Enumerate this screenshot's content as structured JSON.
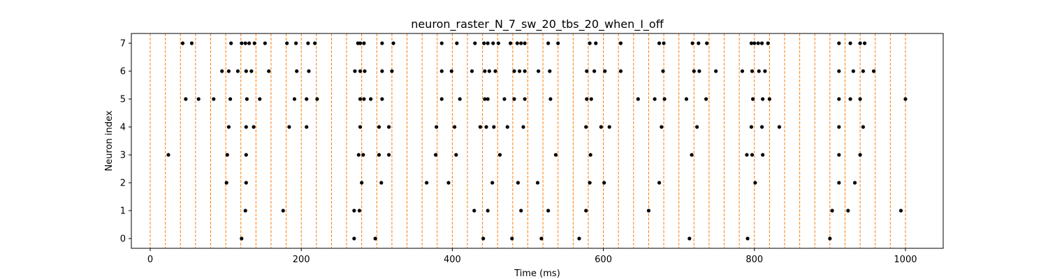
{
  "chart_data": {
    "type": "scatter",
    "title": "neuron_raster_N_7_sw_20_tbs_20_when_I_off",
    "xlabel": "Time (ms)",
    "ylabel": "Neuron index",
    "xlim": [
      -25,
      1050
    ],
    "ylim": [
      -0.35,
      7.35
    ],
    "x_ticks": [
      0,
      200,
      400,
      600,
      800,
      1000
    ],
    "y_ticks": [
      0,
      1,
      2,
      3,
      4,
      5,
      6,
      7
    ],
    "grid": false,
    "legend": "none",
    "spike_color": "#000000",
    "marker_line_color": "#ff7f0e",
    "marker_lines_x": [
      0,
      20,
      40,
      60,
      80,
      100,
      120,
      140,
      160,
      180,
      200,
      220,
      240,
      260,
      280,
      300,
      320,
      340,
      360,
      380,
      400,
      420,
      440,
      460,
      480,
      500,
      520,
      540,
      560,
      580,
      600,
      620,
      640,
      660,
      680,
      700,
      720,
      740,
      760,
      780,
      800,
      820,
      840,
      860,
      880,
      900,
      920,
      940,
      960,
      980,
      1000
    ],
    "series": [
      {
        "neuron": 0,
        "spike_times": [
          121,
          270,
          298,
          441,
          479,
          518,
          568,
          714,
          791,
          900
        ]
      },
      {
        "neuron": 1,
        "spike_times": [
          126,
          176,
          270,
          277,
          429,
          447,
          491,
          527,
          577,
          660,
          903,
          924,
          994
        ]
      },
      {
        "neuron": 2,
        "spike_times": [
          101,
          127,
          280,
          306,
          366,
          395,
          453,
          487,
          513,
          582,
          601,
          674,
          801,
          912,
          933
        ]
      },
      {
        "neuron": 3,
        "spike_times": [
          24,
          102,
          127,
          276,
          282,
          303,
          316,
          378,
          405,
          463,
          537,
          583,
          717,
          790,
          797,
          811,
          912,
          940
        ]
      },
      {
        "neuron": 4,
        "spike_times": [
          104,
          127,
          137,
          184,
          207,
          278,
          303,
          316,
          379,
          403,
          437,
          445,
          455,
          473,
          494,
          577,
          597,
          608,
          677,
          724,
          796,
          810,
          833,
          912,
          944
        ]
      },
      {
        "neuron": 5,
        "spike_times": [
          47,
          64,
          84,
          106,
          128,
          145,
          191,
          207,
          221,
          278,
          283,
          292,
          307,
          386,
          410,
          443,
          447,
          469,
          482,
          496,
          530,
          578,
          584,
          646,
          668,
          681,
          710,
          736,
          798,
          811,
          820,
          912,
          927,
          940,
          1000
        ]
      },
      {
        "neuron": 6,
        "spike_times": [
          95,
          104,
          116,
          127,
          134,
          157,
          194,
          210,
          271,
          278,
          284,
          307,
          320,
          386,
          399,
          426,
          443,
          449,
          457,
          482,
          489,
          496,
          514,
          529,
          578,
          588,
          602,
          623,
          679,
          720,
          727,
          749,
          784,
          797,
          806,
          814,
          912,
          931,
          944,
          958
        ]
      },
      {
        "neuron": 7,
        "spike_times": [
          43,
          55,
          107,
          121,
          126,
          131,
          138,
          152,
          181,
          193,
          209,
          218,
          275,
          278,
          283,
          307,
          322,
          386,
          406,
          430,
          442,
          447,
          454,
          461,
          477,
          486,
          491,
          496,
          527,
          540,
          582,
          590,
          623,
          674,
          680,
          718,
          726,
          737,
          796,
          800,
          805,
          810,
          818,
          912,
          927,
          940,
          946
        ]
      }
    ]
  }
}
